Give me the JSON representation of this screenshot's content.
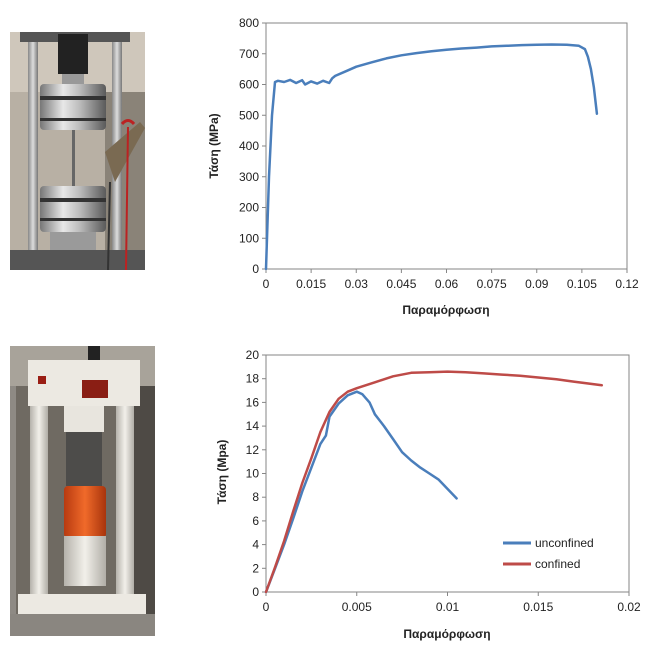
{
  "photos": [
    {
      "name": "tensile-test-machine-photo"
    },
    {
      "name": "compression-test-machine-photo"
    }
  ],
  "chart_data": [
    {
      "type": "line",
      "xlabel": "Παραμόρφωση",
      "ylabel": "Τάση (MPa)",
      "xlim": [
        0,
        0.12
      ],
      "ylim": [
        0,
        800
      ],
      "xticks": [
        "0",
        "0.015",
        "0.03",
        "0.045",
        "0.06",
        "0.075",
        "0.09",
        "0.105",
        "0.12"
      ],
      "yticks": [
        "0",
        "100",
        "200",
        "300",
        "400",
        "500",
        "600",
        "700",
        "800"
      ],
      "grid": false,
      "legend": null,
      "series": [
        {
          "color": "#4a7ebb",
          "x": [
            0,
            0.001,
            0.002,
            0.003,
            0.004,
            0.006,
            0.008,
            0.01,
            0.012,
            0.013,
            0.015,
            0.017,
            0.019,
            0.021,
            0.022,
            0.023,
            0.027,
            0.03,
            0.035,
            0.04,
            0.045,
            0.05,
            0.055,
            0.06,
            0.065,
            0.07,
            0.075,
            0.08,
            0.085,
            0.09,
            0.095,
            0.1,
            0.104,
            0.106,
            0.107,
            0.108,
            0.109,
            0.11
          ],
          "y": [
            0,
            300,
            500,
            608,
            612,
            608,
            615,
            605,
            614,
            600,
            610,
            603,
            612,
            605,
            620,
            628,
            645,
            658,
            672,
            685,
            695,
            702,
            708,
            713,
            717,
            720,
            724,
            726,
            728,
            729,
            730,
            729,
            726,
            715,
            690,
            650,
            590,
            505
          ]
        }
      ]
    },
    {
      "type": "line",
      "xlabel": "Παραμόρφωση",
      "ylabel": "Τάση (Mpa)",
      "xlim": [
        0,
        0.02
      ],
      "ylim": [
        0,
        20
      ],
      "xticks": [
        "0",
        "0.005",
        "0.01",
        "0.015",
        "0.02"
      ],
      "yticks": [
        "0",
        "2",
        "4",
        "6",
        "8",
        "10",
        "12",
        "14",
        "16",
        "18",
        "20"
      ],
      "grid": false,
      "legend": "bottom-right",
      "series": [
        {
          "name": "unconfined",
          "color": "#4a7ebb",
          "x": [
            0,
            0.0005,
            0.001,
            0.0015,
            0.002,
            0.0025,
            0.003,
            0.0033,
            0.0035,
            0.004,
            0.0045,
            0.005,
            0.0053,
            0.0057,
            0.006,
            0.0065,
            0.007,
            0.0075,
            0.008,
            0.0085,
            0.009,
            0.0095,
            0.01,
            0.0105
          ],
          "y": [
            0,
            2,
            4,
            6.2,
            8.5,
            10.5,
            12.5,
            13.2,
            14.8,
            15.9,
            16.6,
            16.9,
            16.7,
            16.0,
            15.0,
            14.0,
            12.9,
            11.8,
            11.1,
            10.5,
            10.0,
            9.5,
            8.7,
            7.9
          ]
        },
        {
          "name": "confined",
          "color": "#be4b48",
          "x": [
            0,
            0.0005,
            0.001,
            0.0015,
            0.002,
            0.0025,
            0.003,
            0.0035,
            0.004,
            0.0045,
            0.005,
            0.006,
            0.007,
            0.008,
            0.009,
            0.01,
            0.011,
            0.012,
            0.013,
            0.014,
            0.015,
            0.016,
            0.017,
            0.0185
          ],
          "y": [
            0,
            2.1,
            4.3,
            6.8,
            9.2,
            11.3,
            13.5,
            15.2,
            16.3,
            16.9,
            17.2,
            17.7,
            18.2,
            18.5,
            18.55,
            18.6,
            18.55,
            18.45,
            18.35,
            18.25,
            18.1,
            17.95,
            17.75,
            17.45
          ]
        }
      ]
    }
  ]
}
